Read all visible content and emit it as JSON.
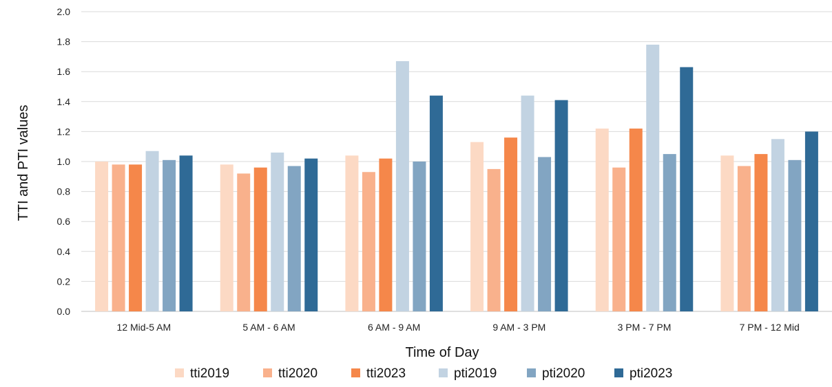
{
  "chart_data": {
    "type": "bar",
    "title": "",
    "xlabel": "Time of Day",
    "ylabel": "TTI and PTI values",
    "ylim": [
      0,
      2.0
    ],
    "yticks": [
      "0.0",
      "0.2",
      "0.4",
      "0.6",
      "0.8",
      "1.0",
      "1.2",
      "1.4",
      "1.6",
      "1.8",
      "2.0"
    ],
    "grid": true,
    "legend_position": "bottom",
    "categories": [
      "12 Mid-5 AM",
      "5 AM - 6 AM",
      "6 AM - 9 AM",
      "9 AM - 3 PM",
      "3 PM - 7 PM",
      "7 PM - 12 Mid"
    ],
    "series": [
      {
        "name": "tti2019",
        "color": "#FCD9C4",
        "values": [
          1.0,
          0.98,
          1.04,
          1.13,
          1.22,
          1.04
        ]
      },
      {
        "name": "tti2020",
        "color": "#F9B18C",
        "values": [
          0.98,
          0.92,
          0.93,
          0.95,
          0.96,
          0.97
        ]
      },
      {
        "name": "tti2023",
        "color": "#F5874A",
        "values": [
          0.98,
          0.96,
          1.02,
          1.16,
          1.22,
          1.05
        ]
      },
      {
        "name": "pti2019",
        "color": "#C2D3E2",
        "values": [
          1.07,
          1.06,
          1.67,
          1.44,
          1.78,
          1.15
        ]
      },
      {
        "name": "pti2020",
        "color": "#82A5C2",
        "values": [
          1.01,
          0.97,
          1.0,
          1.03,
          1.05,
          1.01
        ]
      },
      {
        "name": "pti2023",
        "color": "#2F6A96",
        "values": [
          1.04,
          1.02,
          1.44,
          1.41,
          1.63,
          1.2
        ]
      }
    ]
  }
}
